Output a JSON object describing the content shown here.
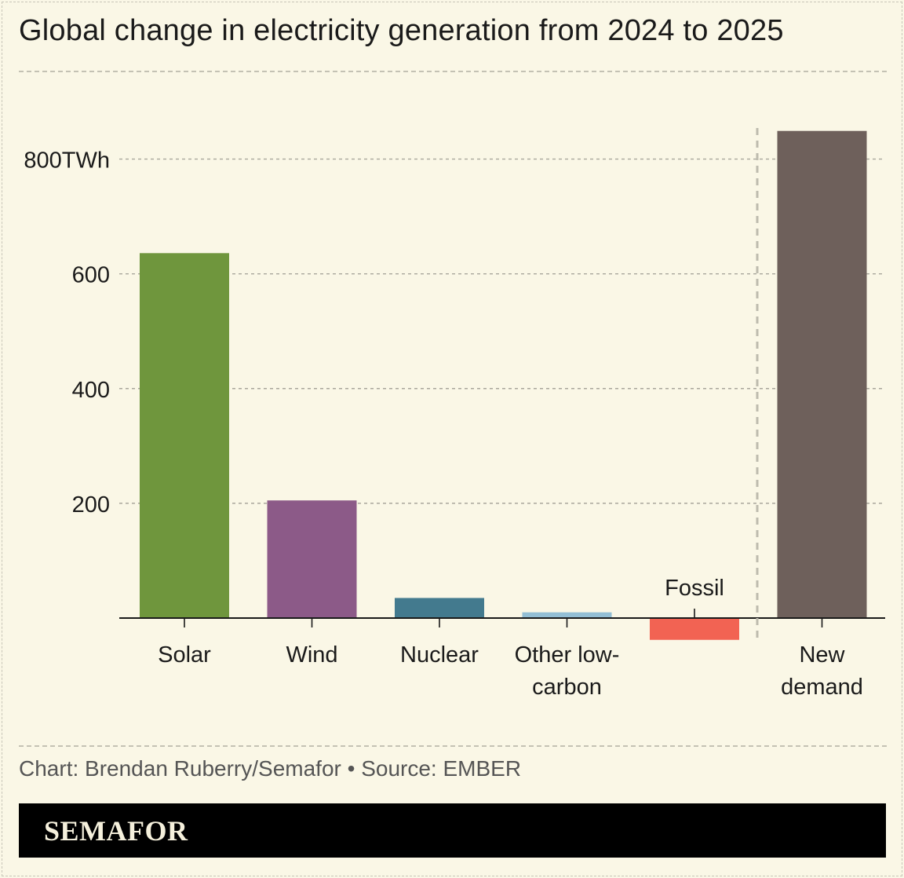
{
  "title": "Global change in electricity generation from 2024 to 2025",
  "credit": "Chart: Brendan Ruberry/Semafor • Source: EMBER",
  "brand": "SEMAFOR",
  "colors": {
    "background": "#faf7e6",
    "solar": "#6f963d",
    "wind": "#8c5a88",
    "nuclear": "#437a8e",
    "other_low_carbon": "#93bfd5",
    "fossil": "#f26353",
    "new_demand": "#6e605b"
  },
  "chart_data": {
    "type": "bar",
    "title": "Global change in electricity generation from 2024 to 2025",
    "xlabel": "",
    "ylabel": "",
    "y_unit": "TWh",
    "ylim": [
      -40,
      850
    ],
    "y_ticks": [
      {
        "value": 200,
        "label": "200"
      },
      {
        "value": 400,
        "label": "400"
      },
      {
        "value": 600,
        "label": "600"
      },
      {
        "value": 800,
        "label": "800TWh"
      }
    ],
    "grid": true,
    "categories": [
      {
        "lines": [
          "Solar"
        ],
        "value": 636,
        "color": "#6f963d",
        "label_position": "below"
      },
      {
        "lines": [
          "Wind"
        ],
        "value": 205,
        "color": "#8c5a88",
        "label_position": "below"
      },
      {
        "lines": [
          "Nuclear"
        ],
        "value": 35,
        "color": "#437a8e",
        "label_position": "below"
      },
      {
        "lines": [
          "Other low-",
          "carbon"
        ],
        "value": 10,
        "color": "#93bfd5",
        "label_position": "below"
      },
      {
        "lines": [
          "Fossil"
        ],
        "value": -38,
        "color": "#f26353",
        "label_position": "above"
      },
      {
        "lines": [
          "New",
          "demand"
        ],
        "value": 849,
        "color": "#6e605b",
        "label_position": "below"
      }
    ],
    "separator_before_category": 5
  }
}
